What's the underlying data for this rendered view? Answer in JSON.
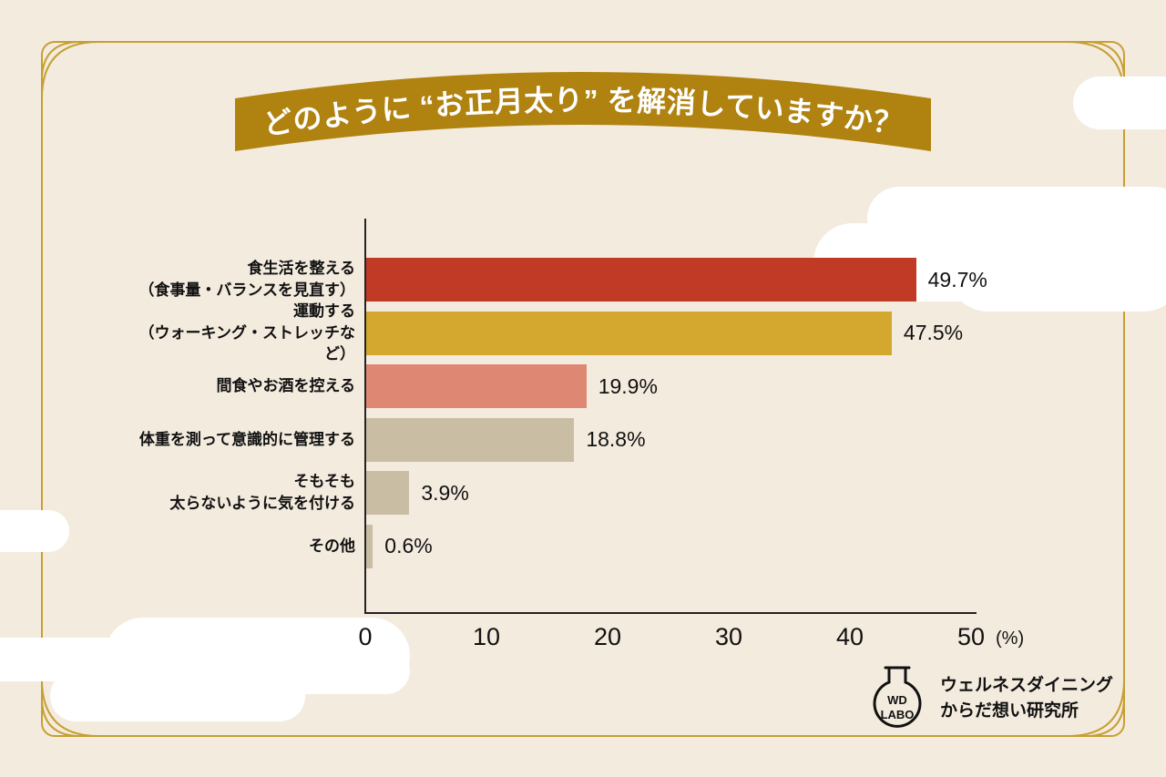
{
  "title_banner": {
    "text": "どのように “お正月太り” を解消していますか？"
  },
  "chart_data": {
    "type": "bar",
    "orientation": "horizontal",
    "title": "どのように “お正月太り” を解消していますか？",
    "categories": [
      "食生活を整える\n（食事量・バランスを見直す）",
      "運動する\n（ウォーキング・ストレッチなど）",
      "間食やお酒を控える",
      "体重を測って意識的に管理する",
      "そもそも\n太らないように気を付ける",
      "その他"
    ],
    "values": [
      49.7,
      47.5,
      19.9,
      18.8,
      3.9,
      0.6
    ],
    "value_labels": [
      "49.7%",
      "47.5%",
      "19.9%",
      "18.8%",
      "3.9%",
      "0.6%"
    ],
    "bar_colors": [
      "#c03a26",
      "#d4a72e",
      "#de8874",
      "#c9bda3",
      "#c9bda3",
      "#c9bda3"
    ],
    "xlim": [
      0,
      50
    ],
    "x_ticks": [
      "0",
      "10",
      "20",
      "30",
      "40",
      "50"
    ],
    "x_unit_label": "(%)",
    "xlabel": "",
    "ylabel": "",
    "grid": false,
    "legend": false
  },
  "footer_logo": {
    "flask_line1": "WD",
    "flask_line2": "LABO",
    "org_line1": "ウェルネスダイニング",
    "org_line2": "からだ想い研究所"
  },
  "colors": {
    "background": "#f4ebdf",
    "banner_gold": "#b08210",
    "frame_gold": "#c6a033",
    "axis": "#232323",
    "text": "#111111",
    "cloud": "#ffffff"
  }
}
